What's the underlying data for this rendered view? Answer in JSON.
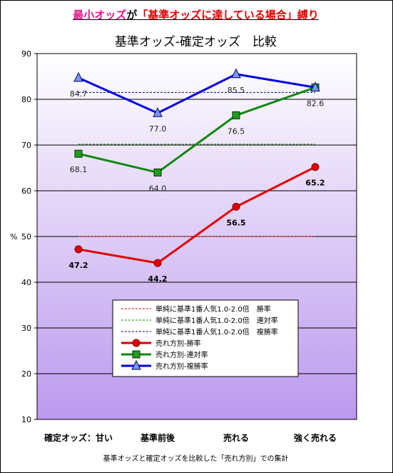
{
  "header": {
    "part1": "最小オッズ",
    "part2": "が",
    "part3": "「基準オッズに達している場合」縛り"
  },
  "footnote": "基準オッズと確定オッズを比較した「売れ方別」での集計",
  "colors": {
    "plot_top": "#ffffff",
    "plot_bottom": "#bb99ee",
    "win": "#e00000",
    "place2": "#118811",
    "place3": "#0000dd",
    "marker_place3": "#7799ee",
    "marker_place2": "#229922"
  },
  "chart_data": {
    "type": "line",
    "title": "基準オッズ-確定オッズ　比較",
    "ylabel": "%",
    "ylim": [
      10,
      90
    ],
    "yticks": [
      10,
      20,
      30,
      40,
      50,
      60,
      70,
      80,
      90
    ],
    "grid": true,
    "categories": [
      "確定オッズ：甘い",
      "基準前後",
      "売れる",
      "強く売れる"
    ],
    "series": [
      {
        "name": "売れ方別-勝率",
        "values": [
          47.2,
          44.2,
          56.5,
          65.2
        ],
        "color": "#e00000",
        "marker": "circle",
        "labels": [
          "47.2",
          "44.2",
          "56.5",
          "65.2"
        ],
        "label_bold": true
      },
      {
        "name": "売れ方別-連対率",
        "values": [
          68.1,
          64.0,
          76.5,
          82.6
        ],
        "color": "#118811",
        "marker": "square",
        "labels": [
          "68.1",
          "64.0",
          "76.5",
          "82.6"
        ],
        "label_bold": false
      },
      {
        "name": "売れ方別-複勝率",
        "values": [
          84.7,
          77.0,
          85.5,
          82.6
        ],
        "color": "#0000dd",
        "marker": "triangle",
        "labels": [
          "84.7",
          "77.0",
          "85.5",
          ""
        ],
        "label_bold": false
      }
    ],
    "reference_lines": [
      {
        "name": "単純に基準1番人気1.0-2.0倍　勝率",
        "value": 50.0,
        "color": "#e00000"
      },
      {
        "name": "単純に基準1番人気1.0-2.0倍　連対率",
        "value": 70.2,
        "color": "#118811"
      },
      {
        "name": "単純に基準1番人気1.0-2.0倍　複勝率",
        "value": 81.5,
        "color": "#000088"
      }
    ],
    "legend_position": "inside-bottom-center"
  }
}
